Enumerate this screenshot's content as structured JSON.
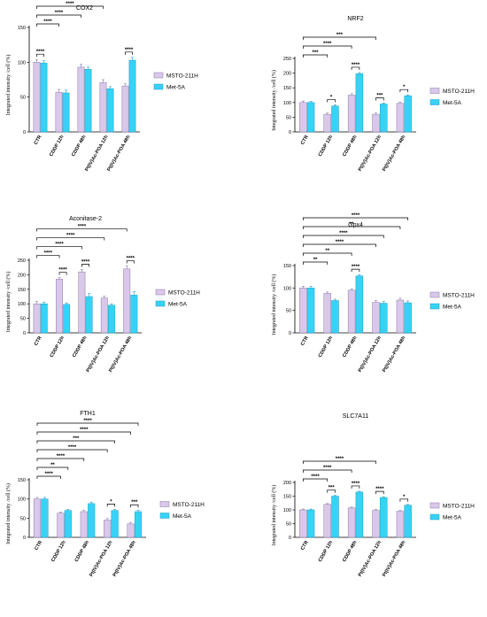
{
  "colors": {
    "msto": "#d9c8ea",
    "msto_edge": "#8a78a8",
    "met": "#37d2f6",
    "met_edge": "#1b9fc6",
    "axis": "#000000"
  },
  "chart_data": [
    {
      "type": "bar",
      "title": "COX2",
      "ylabel": "Integrated intensity /cell (%)",
      "ylim": [
        0,
        150
      ],
      "yticks": [
        "0",
        "50",
        "100",
        "150"
      ],
      "categories": [
        "CTR",
        "CDDP 12h",
        "CDDP 48h",
        "Pt(IV)Ac-POA 12h",
        "Pt(IV)Ac-POA 48h"
      ],
      "series": [
        {
          "name": "MSTO-211H",
          "values": [
            100,
            57,
            93,
            71,
            66
          ],
          "errors": [
            4,
            4,
            4,
            4,
            3
          ]
        },
        {
          "name": "Met-5A",
          "values": [
            99,
            56,
            90,
            62,
            103
          ],
          "errors": [
            3,
            4,
            3,
            3,
            4
          ]
        }
      ],
      "significance": [
        {
          "from": [
            0,
            0
          ],
          "to": [
            0,
            1
          ],
          "label": "****"
        },
        {
          "from": [
            0,
            0
          ],
          "to": [
            1,
            0
          ],
          "label": "****"
        },
        {
          "from": [
            0,
            0
          ],
          "to": [
            2,
            0
          ],
          "label": "****"
        },
        {
          "from": [
            0,
            0
          ],
          "to": [
            3,
            0
          ],
          "label": "****"
        },
        {
          "from": [
            0,
            0
          ],
          "to": [
            4,
            0
          ],
          "label": "****"
        },
        {
          "from": [
            0,
            0
          ],
          "to": [
            4,
            1
          ],
          "label": "****"
        },
        {
          "from": [
            4,
            0
          ],
          "to": [
            4,
            1
          ],
          "label": "****"
        }
      ]
    },
    {
      "type": "bar",
      "title": "NRF2",
      "ylabel": "Integrated intensity /cell (%)",
      "ylim": [
        0,
        250
      ],
      "yticks": [
        "0",
        "50",
        "100",
        "150",
        "200",
        "250"
      ],
      "categories": [
        "CTR",
        "CDDP 12h",
        "CDDP 48h",
        "Pt(IV)Ac-POA 12h",
        "Pt(IV)Ac-POA 48h"
      ],
      "series": [
        {
          "name": "MSTO-211H",
          "values": [
            100,
            60,
            125,
            60,
            97
          ],
          "errors": [
            5,
            4,
            5,
            4,
            4
          ]
        },
        {
          "name": "Met-5A",
          "values": [
            100,
            88,
            198,
            95,
            123
          ],
          "errors": [
            4,
            4,
            4,
            3,
            3
          ]
        }
      ],
      "significance": [
        {
          "from": [
            0,
            0
          ],
          "to": [
            1,
            0
          ],
          "label": "***"
        },
        {
          "from": [
            1,
            0
          ],
          "to": [
            1,
            1
          ],
          "label": "*"
        },
        {
          "from": [
            2,
            0
          ],
          "to": [
            2,
            1
          ],
          "label": "****"
        },
        {
          "from": [
            3,
            0
          ],
          "to": [
            3,
            1
          ],
          "label": "***"
        },
        {
          "from": [
            4,
            0
          ],
          "to": [
            4,
            1
          ],
          "label": "*"
        },
        {
          "from": [
            0,
            0
          ],
          "to": [
            2,
            0
          ],
          "label": "****"
        },
        {
          "from": [
            0,
            0
          ],
          "to": [
            3,
            0
          ],
          "label": "***"
        }
      ]
    },
    {
      "type": "bar",
      "title": "Aconitase-2",
      "ylabel": "Integrated intensity /cell (%)",
      "ylim": [
        0,
        250
      ],
      "yticks": [
        "0",
        "50",
        "100",
        "150",
        "200",
        "250"
      ],
      "categories": [
        "CTR",
        "CDDP 12h",
        "CDDP 48h",
        "Pt(IV)Ac-POA 12h",
        "Pt(IV)Ac-POA 48h"
      ],
      "series": [
        {
          "name": "MSTO-211H",
          "values": [
            100,
            185,
            210,
            120,
            220
          ],
          "errors": [
            8,
            5,
            8,
            6,
            10
          ]
        },
        {
          "name": "Met-5A",
          "values": [
            100,
            98,
            125,
            95,
            130
          ],
          "errors": [
            6,
            5,
            10,
            5,
            12
          ]
        }
      ],
      "significance": [
        {
          "from": [
            0,
            0
          ],
          "to": [
            1,
            0
          ],
          "label": "****"
        },
        {
          "from": [
            1,
            0
          ],
          "to": [
            1,
            1
          ],
          "label": "****"
        },
        {
          "from": [
            0,
            0
          ],
          "to": [
            2,
            0
          ],
          "label": "****"
        },
        {
          "from": [
            2,
            0
          ],
          "to": [
            2,
            1
          ],
          "label": "****"
        },
        {
          "from": [
            0,
            0
          ],
          "to": [
            3,
            0
          ],
          "label": "****"
        },
        {
          "from": [
            4,
            0
          ],
          "to": [
            4,
            1
          ],
          "label": "****"
        },
        {
          "from": [
            0,
            0
          ],
          "to": [
            4,
            0
          ],
          "label": "****"
        }
      ]
    },
    {
      "type": "bar",
      "title": "Gpx4",
      "ylabel": "Integrated intensity /cell (%)",
      "ylim": [
        0,
        150
      ],
      "yticks": [
        "0",
        "50",
        "100",
        "150"
      ],
      "categories": [
        "CTR",
        "CDDP 12h",
        "CDDP 48h",
        "Pt(IV)Ac-POA 12h",
        "Pt(IV)Ac-POA 48h"
      ],
      "series": [
        {
          "name": "MSTO-211H",
          "values": [
            100,
            88,
            95,
            68,
            73
          ],
          "errors": [
            4,
            3,
            3,
            4,
            4
          ]
        },
        {
          "name": "Met-5A",
          "values": [
            100,
            72,
            127,
            66,
            67
          ],
          "errors": [
            4,
            3,
            3,
            4,
            4
          ]
        }
      ],
      "significance": [
        {
          "from": [
            0,
            0
          ],
          "to": [
            1,
            0
          ],
          "label": "**"
        },
        {
          "from": [
            2,
            0
          ],
          "to": [
            2,
            1
          ],
          "label": "****"
        },
        {
          "from": [
            0,
            0
          ],
          "to": [
            2,
            0
          ],
          "label": "**"
        },
        {
          "from": [
            0,
            0
          ],
          "to": [
            3,
            0
          ],
          "label": "****"
        },
        {
          "from": [
            0,
            0
          ],
          "to": [
            3,
            1
          ],
          "label": "****"
        },
        {
          "from": [
            0,
            0
          ],
          "to": [
            4,
            0
          ],
          "label": "**"
        },
        {
          "from": [
            0,
            0
          ],
          "to": [
            4,
            1
          ],
          "label": "****"
        }
      ]
    },
    {
      "type": "bar",
      "title": "FTH1",
      "ylabel": "Integrated intensity /cell (%)",
      "ylim": [
        0,
        150
      ],
      "yticks": [
        "0",
        "50",
        "100",
        "150"
      ],
      "categories": [
        "CTR",
        "CDDP 12h",
        "CDDP 48h",
        "Pt(IV)Ac-POA 12h",
        "Pt(IV)Ac-POA 48h"
      ],
      "series": [
        {
          "name": "MSTO-211H",
          "values": [
            100,
            63,
            67,
            45,
            35
          ],
          "errors": [
            4,
            3,
            4,
            4,
            4
          ]
        },
        {
          "name": "Met-5A",
          "values": [
            100,
            70,
            88,
            70,
            67
          ],
          "errors": [
            4,
            3,
            4,
            3,
            4
          ]
        }
      ],
      "significance": [
        {
          "from": [
            0,
            0
          ],
          "to": [
            1,
            0
          ],
          "label": "****"
        },
        {
          "from": [
            0,
            0
          ],
          "to": [
            1,
            1
          ],
          "label": "**"
        },
        {
          "from": [
            3,
            0
          ],
          "to": [
            3,
            1
          ],
          "label": "*"
        },
        {
          "from": [
            4,
            0
          ],
          "to": [
            4,
            1
          ],
          "label": "***"
        },
        {
          "from": [
            0,
            0
          ],
          "to": [
            2,
            0
          ],
          "label": "****"
        },
        {
          "from": [
            0,
            0
          ],
          "to": [
            3,
            0
          ],
          "label": "****"
        },
        {
          "from": [
            0,
            0
          ],
          "to": [
            3,
            1
          ],
          "label": "***"
        },
        {
          "from": [
            0,
            0
          ],
          "to": [
            4,
            0
          ],
          "label": "****"
        },
        {
          "from": [
            0,
            0
          ],
          "to": [
            4,
            1
          ],
          "label": "****"
        }
      ]
    },
    {
      "type": "bar",
      "title": "SLC7A11",
      "ylabel": "Integrated intensity /cell (%)",
      "ylim": [
        0,
        200
      ],
      "yticks": [
        "0",
        "50",
        "100",
        "150",
        "200"
      ],
      "categories": [
        "CTR",
        "CDDP 12h",
        "CDDP 48h",
        "Pt(IV)Ac-POA 12h",
        "Pt(IV)Ac-POA 48h"
      ],
      "series": [
        {
          "name": "MSTO-211H",
          "values": [
            100,
            120,
            107,
            98,
            95
          ],
          "errors": [
            3,
            3,
            3,
            3,
            3
          ]
        },
        {
          "name": "Met-5A",
          "values": [
            100,
            150,
            165,
            145,
            117
          ],
          "errors": [
            3,
            3,
            3,
            3,
            3
          ]
        }
      ],
      "significance": [
        {
          "from": [
            1,
            0
          ],
          "to": [
            1,
            1
          ],
          "label": "***"
        },
        {
          "from": [
            2,
            0
          ],
          "to": [
            2,
            1
          ],
          "label": "****"
        },
        {
          "from": [
            3,
            0
          ],
          "to": [
            3,
            1
          ],
          "label": "****"
        },
        {
          "from": [
            4,
            0
          ],
          "to": [
            4,
            1
          ],
          "label": "*"
        },
        {
          "from": [
            0,
            0
          ],
          "to": [
            1,
            0
          ],
          "label": "****"
        },
        {
          "from": [
            0,
            0
          ],
          "to": [
            2,
            0
          ],
          "label": "****"
        },
        {
          "from": [
            0,
            0
          ],
          "to": [
            3,
            0
          ],
          "label": "****"
        }
      ]
    }
  ]
}
